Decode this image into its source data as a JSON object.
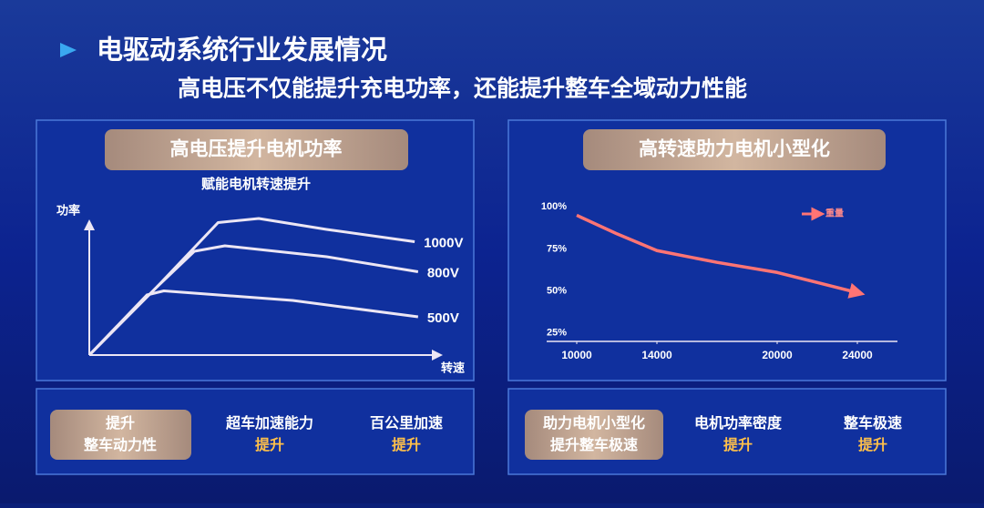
{
  "header": {
    "title": "电驱动系统行业发展情况",
    "subtitle": "高电压不仅能提升充电功率，还能提升整车全域动力性能"
  },
  "chart_data": [
    {
      "type": "line",
      "title": "高电压提升电机功率",
      "subtitle": "赋能电机转速提升",
      "xlabel": "转速",
      "ylabel": "功率",
      "xlim": [
        0,
        100
      ],
      "ylim": [
        0,
        110
      ],
      "series": [
        {
          "name": "1000V",
          "color": "#ece6f4",
          "x": [
            0,
            20,
            38,
            50,
            70,
            96
          ],
          "values": [
            0,
            50,
            97,
            100,
            92,
            83
          ]
        },
        {
          "name": "800V",
          "color": "#ece6f4",
          "x": [
            0,
            20,
            31,
            40,
            70,
            97
          ],
          "values": [
            0,
            50,
            76,
            80,
            72,
            61
          ]
        },
        {
          "name": "500V",
          "color": "#ece6f4",
          "x": [
            0,
            17,
            22,
            60,
            97
          ],
          "values": [
            0,
            44,
            47,
            40,
            28
          ]
        }
      ]
    },
    {
      "type": "line",
      "title": "高转速助力电机小型化",
      "xlim": [
        8500,
        26000
      ],
      "ylim": [
        20,
        105
      ],
      "xticks": [
        10000,
        14000,
        20000,
        24000
      ],
      "yticks": [
        {
          "value": 25,
          "label": "25%"
        },
        {
          "value": 50,
          "label": "50%"
        },
        {
          "value": 75,
          "label": "75%"
        },
        {
          "value": 100,
          "label": "100%"
        }
      ],
      "grid": false,
      "legend": "upper right",
      "series": [
        {
          "name": "重量",
          "color": "#ff7474",
          "x": [
            10000,
            12000,
            14000,
            17000,
            20000,
            22000,
            24000
          ],
          "values": [
            95,
            84,
            74,
            67,
            61,
            55,
            49
          ]
        }
      ]
    }
  ],
  "left_boxes": [
    {
      "line1": "提升",
      "line2": "整车动力性"
    },
    {
      "line1": "超车加速能力",
      "line2": "提升"
    },
    {
      "line1": "百公里加速",
      "line2": "提升"
    }
  ],
  "right_boxes": [
    {
      "line1": "助力电机小型化",
      "line2": "提升整车极速"
    },
    {
      "line1": "电机功率密度",
      "line2": "提升"
    },
    {
      "line1": "整车极速",
      "line2": "提升"
    }
  ]
}
